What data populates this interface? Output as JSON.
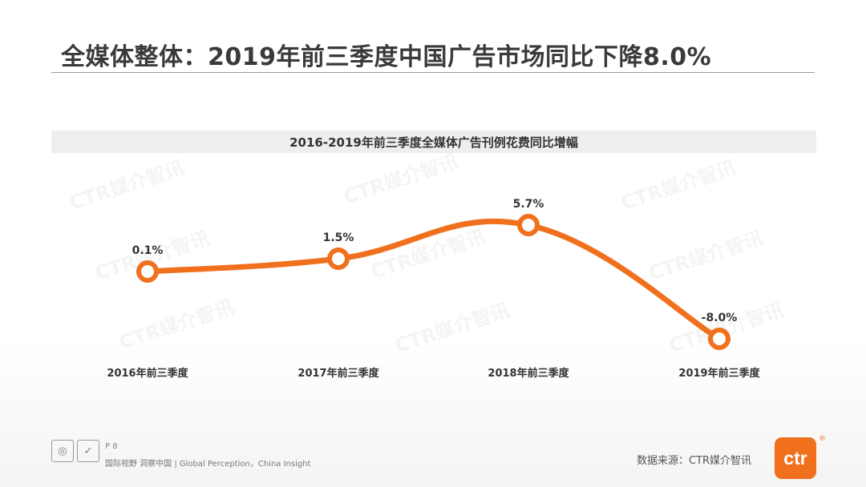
{
  "page": {
    "title": "全媒体整体：2019年前三季度中国广告市场同比下降8.0%",
    "page_number": "P 8",
    "slogan": "国际视野 洞察中国 | Global Perception，China Insight",
    "source": "数据来源：CTR媒介智讯",
    "logo_text": "ctr",
    "registered_mark": "®",
    "watermark": "CTR媒介智讯"
  },
  "colors": {
    "accent": "#f0701e",
    "title": "#3a3a3a",
    "header_band": "#eeeeee"
  },
  "chart_data": {
    "type": "line",
    "title": "2016-2019年前三季度全媒体广告刊例花费同比增幅",
    "categories": [
      "2016年前三季度",
      "2017年前三季度",
      "2018年前三季度",
      "2019年前三季度"
    ],
    "series": [
      {
        "values": [
          0.1,
          1.5,
          5.7,
          -8.0
        ]
      }
    ],
    "data_labels": [
      "0.1%",
      "1.5%",
      "5.7%",
      "-8.0%"
    ],
    "ylim": [
      -10,
      8
    ],
    "smooth": true,
    "grid": false,
    "marker": "ring",
    "xlabel": "",
    "ylabel": ""
  }
}
